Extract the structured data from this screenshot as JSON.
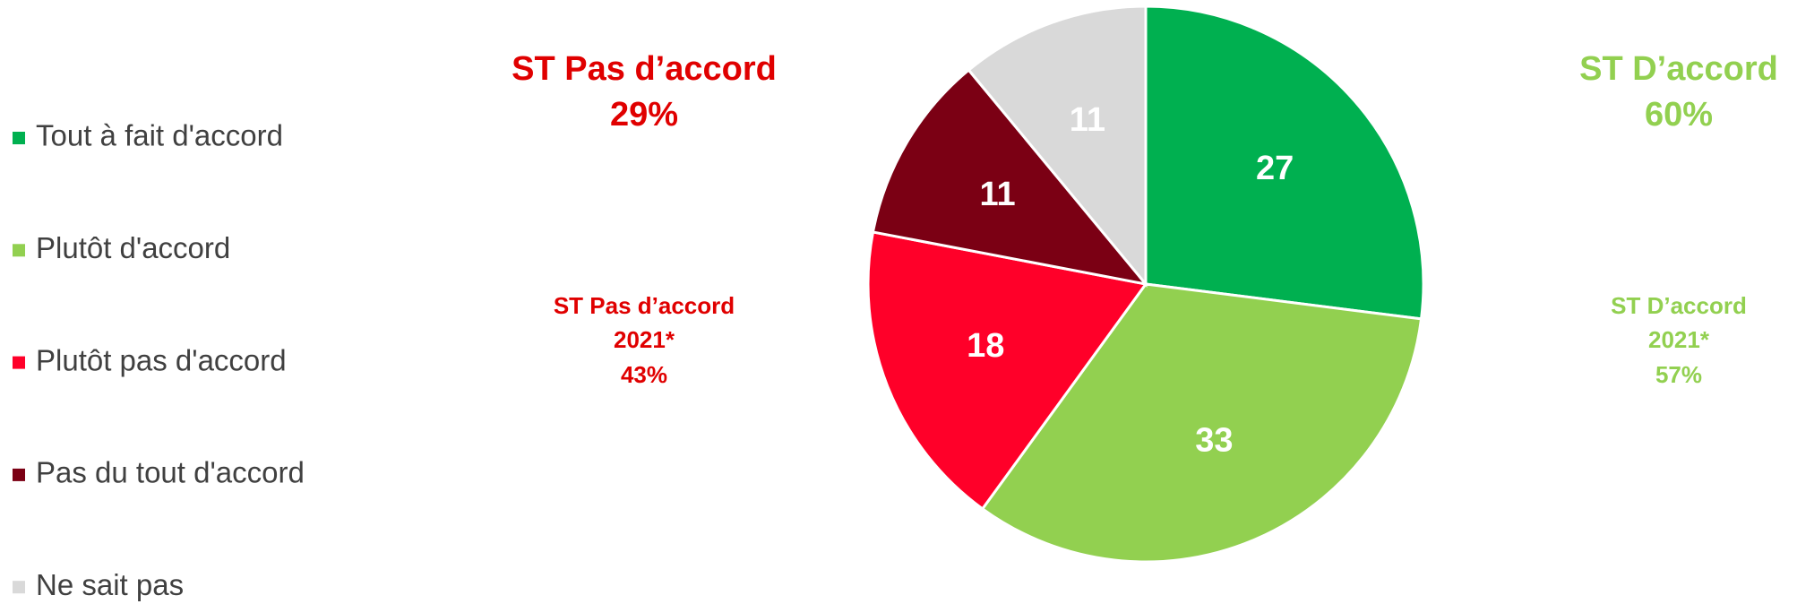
{
  "chart_data": {
    "type": "pie",
    "categories": [
      "Tout à fait d'accord",
      "Plutôt d'accord",
      "Plutôt pas d'accord",
      "Pas du tout d'accord",
      "Ne sait pas"
    ],
    "values": [
      27,
      33,
      18,
      11,
      11
    ],
    "colors": [
      "#00b050",
      "#92d050",
      "#ff0029",
      "#7b0014",
      "#d9d9d9"
    ],
    "legend": "left",
    "annotations": {
      "left_main": [
        "ST Pas d’accord",
        "29%"
      ],
      "right_main": [
        "ST D’accord",
        "60%"
      ],
      "left_2021": [
        "ST Pas d’accord",
        "2021*",
        "43%"
      ],
      "right_2021": [
        "ST D’accord",
        "2021*",
        "57%"
      ]
    }
  }
}
